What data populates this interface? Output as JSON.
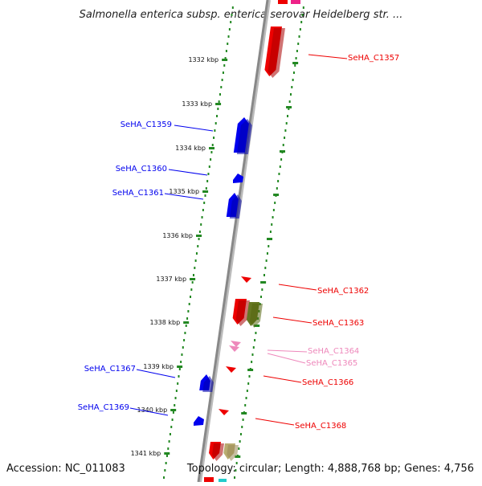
{
  "title": "Salmonella enterica subsp. enterica serovar Heidelberg str. ...",
  "footer": {
    "accession": "Accession: NC_011083",
    "stats": "Topology: circular; Length: 4,888,768 bp; Genes: 4,756"
  },
  "colors": {
    "forward": "#0000ee",
    "reverse": "#ee0000",
    "faint": "#ee88bb",
    "olive": "#667722",
    "khaki": "#b8ac70",
    "dots": "#228822",
    "backbone": "#888888"
  },
  "ticks": [
    {
      "label": "1332 kbp"
    },
    {
      "label": "1333 kbp"
    },
    {
      "label": "1334 kbp"
    },
    {
      "label": "1335 kbp"
    },
    {
      "label": "1336 kbp"
    },
    {
      "label": "1337 kbp"
    },
    {
      "label": "1338 kbp"
    },
    {
      "label": "1339 kbp"
    },
    {
      "label": "1340 kbp"
    },
    {
      "label": "1341 kbp"
    }
  ],
  "genes": [
    {
      "name": "SeHA_C1357",
      "strand": "reverse",
      "color": "reverse"
    },
    {
      "name": "SeHA_C1359",
      "strand": "forward",
      "color": "forward"
    },
    {
      "name": "SeHA_C1360",
      "strand": "forward",
      "color": "forward"
    },
    {
      "name": "SeHA_C1361",
      "strand": "forward",
      "color": "forward"
    },
    {
      "name": "SeHA_C1362",
      "strand": "reverse",
      "color": "reverse"
    },
    {
      "name": "SeHA_C1363",
      "strand": "reverse",
      "color": "reverse"
    },
    {
      "name": "SeHA_C1364",
      "strand": "reverse",
      "color": "faint"
    },
    {
      "name": "SeHA_C1365",
      "strand": "reverse",
      "color": "faint"
    },
    {
      "name": "SeHA_C1366",
      "strand": "reverse",
      "color": "reverse"
    },
    {
      "name": "SeHA_C1367",
      "strand": "forward",
      "color": "forward"
    },
    {
      "name": "SeHA_C1368",
      "strand": "reverse",
      "color": "reverse"
    },
    {
      "name": "SeHA_C1369",
      "strand": "forward",
      "color": "forward"
    }
  ]
}
